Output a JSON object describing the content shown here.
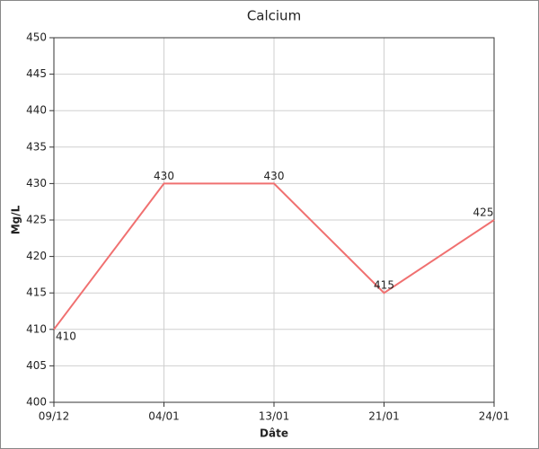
{
  "chart_data": {
    "type": "line",
    "title": "Calcium",
    "x_label": "Dâte",
    "y_label": "Mg/L",
    "categories": [
      "09/12",
      "04/01",
      "13/01",
      "21/01",
      "24/01"
    ],
    "values": [
      410,
      430,
      430,
      415,
      425
    ],
    "color": "#f07070",
    "ylim": [
      400,
      450
    ],
    "yticks": [
      400,
      405,
      410,
      415,
      420,
      425,
      430,
      435,
      440,
      445,
      450
    ],
    "grid": true
  }
}
